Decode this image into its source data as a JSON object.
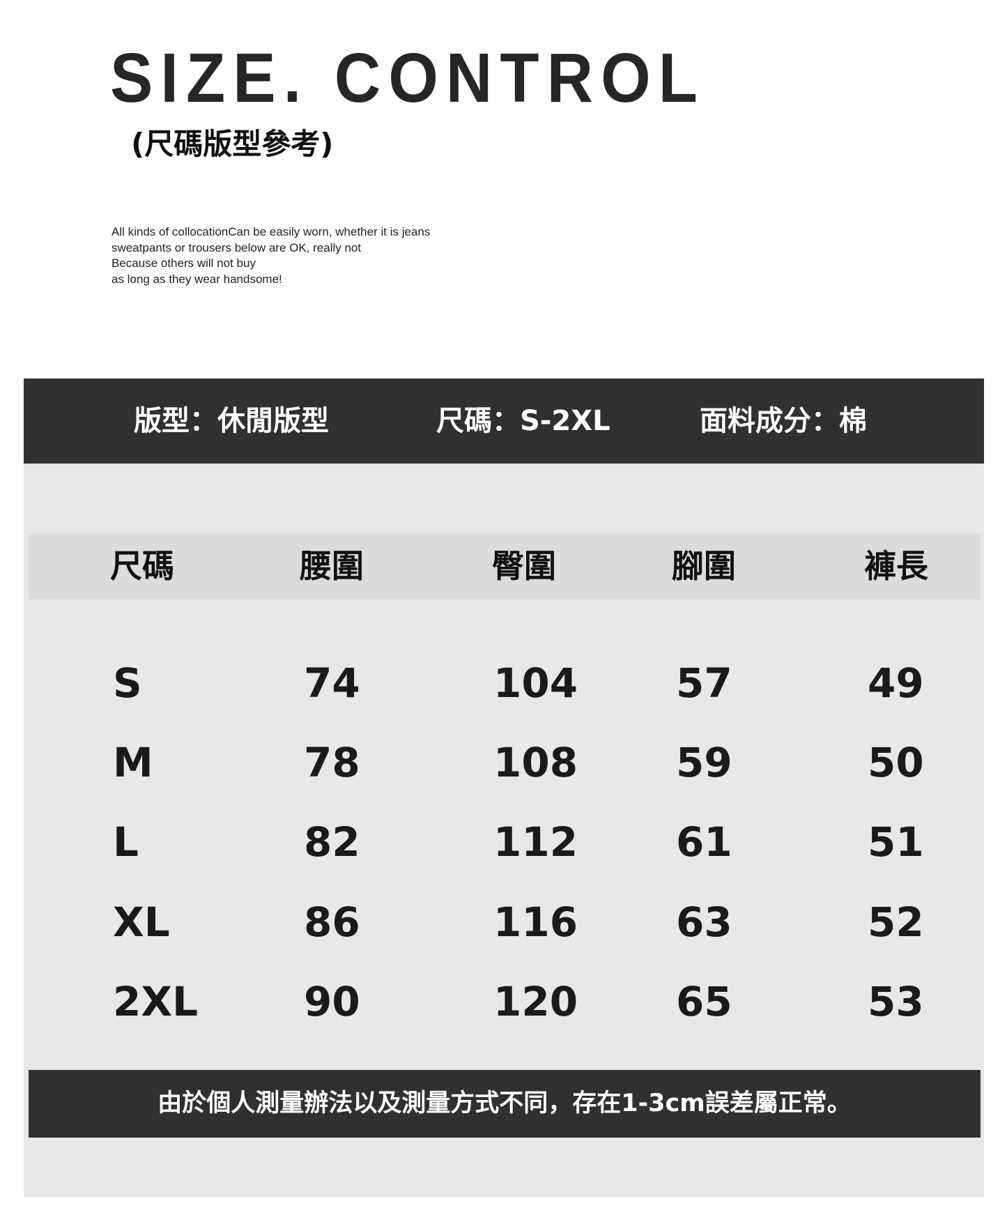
{
  "title": "SIZE. CONTROL",
  "subtitle": "(尺碼版型參考)",
  "paragraph": [
    "All kinds of collocationCan be easily worn, whether it is jeans",
    "sweatpants or trousers below are OK, really not",
    "Because others will not buy",
    "as long as they wear handsome!"
  ],
  "info": {
    "fit": "版型：休閒版型",
    "size": "尺碼：S-2XL",
    "fabric": "面料成分：棉"
  },
  "table": {
    "headers": [
      "尺碼",
      "腰圍",
      "臀圍",
      "腳圍",
      "褲長"
    ],
    "rows": [
      [
        "S",
        "74",
        "104",
        "57",
        "49"
      ],
      [
        "M",
        "78",
        "108",
        "59",
        "50"
      ],
      [
        "L",
        "82",
        "112",
        "61",
        "51"
      ],
      [
        "XL",
        "86",
        "116",
        "63",
        "52"
      ],
      [
        "2XL",
        "90",
        "120",
        "65",
        "53"
      ]
    ]
  },
  "footer": "由於個人測量辦法以及測量方式不同，存在1-3cm誤差屬正常。",
  "colors": {
    "dark_bar": "#303030",
    "panel": "#e8e8e8",
    "header_row": "#dcdcdc"
  }
}
